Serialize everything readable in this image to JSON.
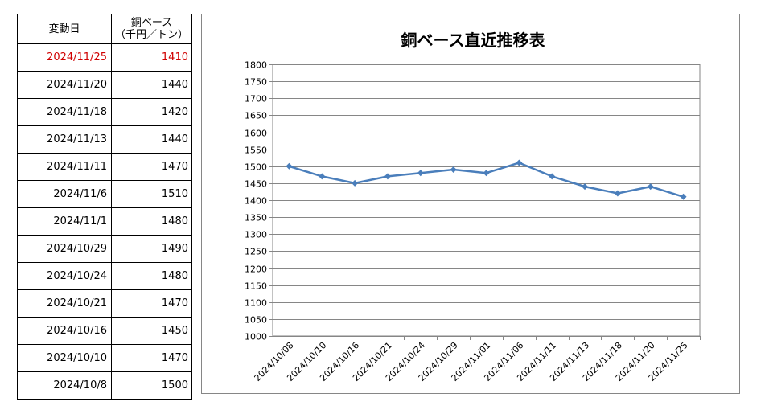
{
  "table": {
    "header_date": "変動日",
    "header_price_line1": "銅ベース",
    "header_price_line2": "（千円／トン）",
    "latest_color": "#d00000",
    "rows": [
      {
        "date": "2024/11/25",
        "price": "1410"
      },
      {
        "date": "2024/11/20",
        "price": "1440"
      },
      {
        "date": "2024/11/18",
        "price": "1420"
      },
      {
        "date": "2024/11/13",
        "price": "1440"
      },
      {
        "date": "2024/11/11",
        "price": "1470"
      },
      {
        "date": "2024/11/6",
        "price": "1510"
      },
      {
        "date": "2024/11/1",
        "price": "1480"
      },
      {
        "date": "2024/10/29",
        "price": "1490"
      },
      {
        "date": "2024/10/24",
        "price": "1480"
      },
      {
        "date": "2024/10/21",
        "price": "1470"
      },
      {
        "date": "2024/10/16",
        "price": "1450"
      },
      {
        "date": "2024/10/10",
        "price": "1470"
      },
      {
        "date": "2024/10/8",
        "price": "1500"
      }
    ]
  },
  "chart_data": {
    "type": "line",
    "title": "銅ベース直近推移表",
    "xlabel": "",
    "ylabel": "",
    "categories": [
      "2024/10/08",
      "2024/10/10",
      "2024/10/16",
      "2024/10/21",
      "2024/10/24",
      "2024/10/29",
      "2024/11/01",
      "2024/11/06",
      "2024/11/11",
      "2024/11/13",
      "2024/11/18",
      "2024/11/20",
      "2024/11/25"
    ],
    "series": [
      {
        "values": [
          1500,
          1470,
          1450,
          1470,
          1480,
          1490,
          1480,
          1510,
          1470,
          1440,
          1420,
          1440,
          1410
        ]
      }
    ],
    "ylim": [
      1000,
      1800
    ],
    "ytick_step": 50,
    "grid": true,
    "line_color": "#4a7ebb"
  }
}
